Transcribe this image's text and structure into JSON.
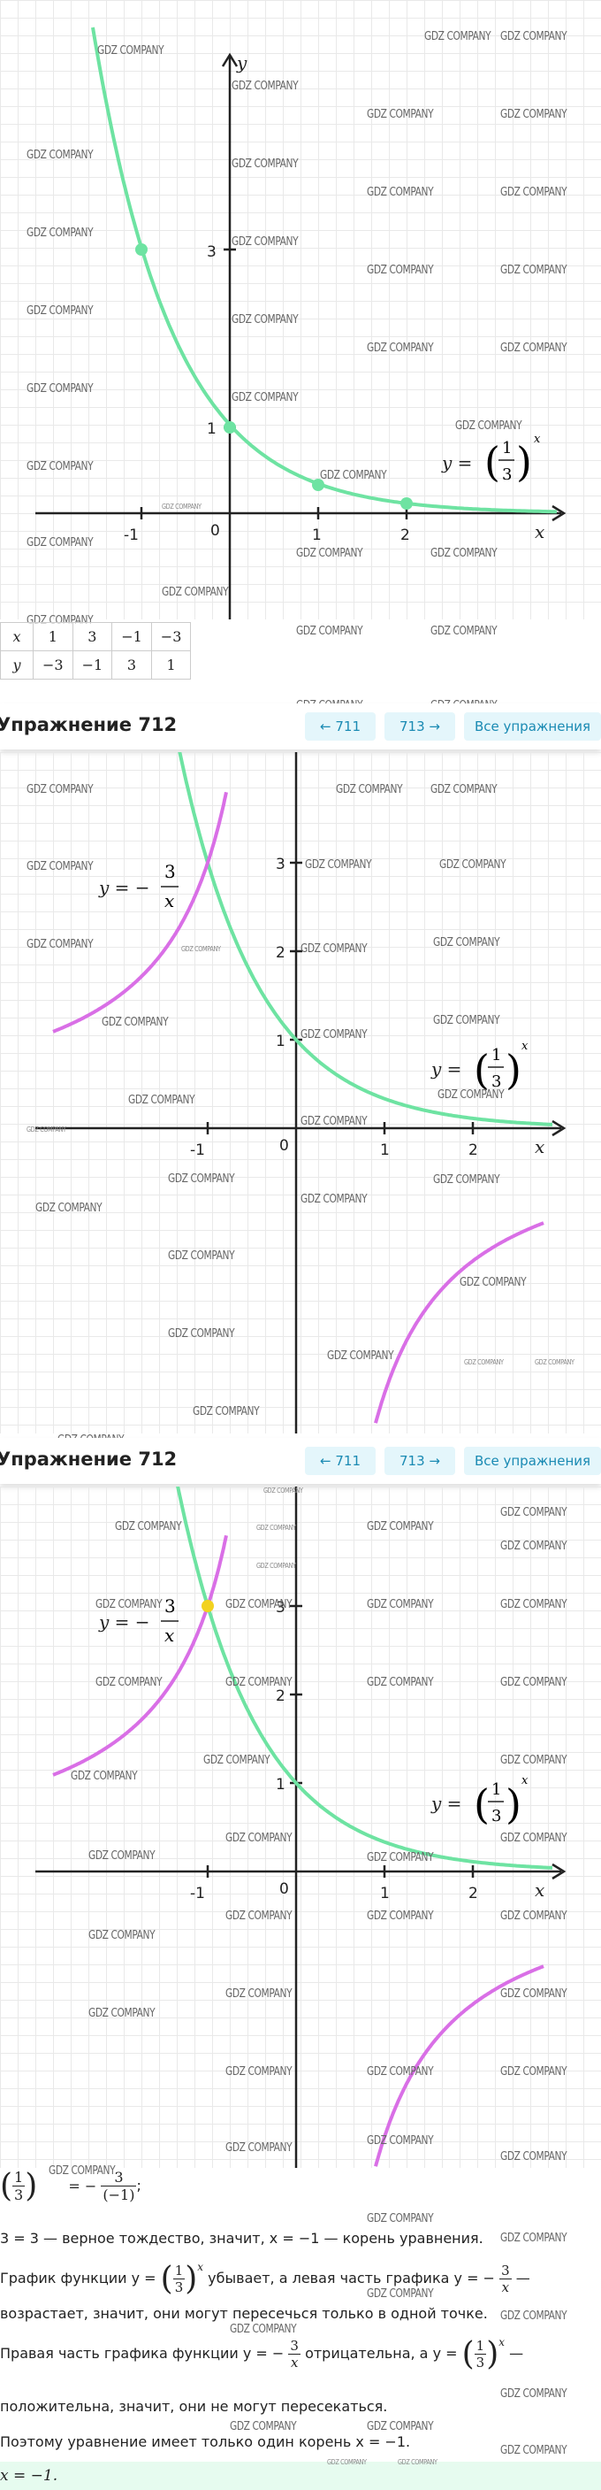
{
  "watermark": "GDZ COMPANY",
  "colors": {
    "green": "#6ee3a2",
    "purple": "#d96fe6",
    "yellow": "#f2d21f",
    "accent": "#1a8ab3"
  },
  "graph1": {
    "y_axis": "y",
    "x_axis": "x",
    "ticks_x": [
      "-1",
      "0",
      "1",
      "2"
    ],
    "ticks_y": [
      "1",
      "3"
    ],
    "formula_lhs": "y =",
    "frac_num": "1",
    "frac_den": "3",
    "exp": "x"
  },
  "table": {
    "row_x": [
      "x",
      "1",
      "3",
      "−1",
      "−3"
    ],
    "row_y": [
      "y",
      "−3",
      "−1",
      "3",
      "1"
    ]
  },
  "exercise_bar": {
    "title": "Упражнение 712",
    "prev": "← 711",
    "next": "713 →",
    "all": "Все упражнения"
  },
  "graph2": {
    "ticks_x": [
      "-1",
      "0",
      "1",
      "2"
    ],
    "ticks_y": [
      "1",
      "2",
      "3"
    ],
    "hyper_lhs": "y = −",
    "hyper_num": "3",
    "hyper_den": "x",
    "exp_lhs": "y =",
    "exp_num": "1",
    "exp_den": "3",
    "exp": "x",
    "x_axis": "x"
  },
  "solution": {
    "line1_rhs": "= −",
    "line1_num": "3",
    "line1_den": "(−1)",
    "line1_tail": ";",
    "line2": "3 = 3 — верное тождество, значит, x = −1 — корень уравнения.",
    "line3a": "График функции y =",
    "line3b": "убывает, а левая часть графика y = −",
    "line3c": "—",
    "line4": "возрастает, значит, они могут пересечься только в одной точке.",
    "line5a": "Правая часть графика функции y = −",
    "line5b": "отрицательна, а y =",
    "line5c": "—",
    "line6": "положительна, значит, они не могут пересекаться.",
    "line7": "Поэтому уравнение имеет только один корень x = −1.",
    "answer": "x = −1."
  }
}
